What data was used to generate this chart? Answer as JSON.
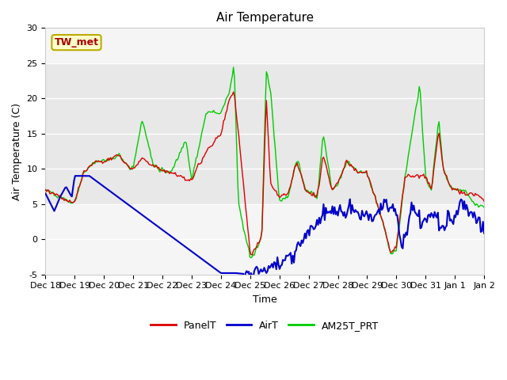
{
  "title": "Air Temperature",
  "xlabel": "Time",
  "ylabel": "Air Temperature (C)",
  "ylim": [
    -5,
    30
  ],
  "yticks": [
    -5,
    0,
    5,
    10,
    15,
    20,
    25,
    30
  ],
  "xtick_labels": [
    "Dec 18",
    "Dec 19",
    "Dec 20",
    "Dec 21",
    "Dec 22",
    "Dec 23",
    "Dec 24",
    "Dec 25",
    "Dec 26",
    "Dec 27",
    "Dec 28",
    "Dec 29",
    "Dec 30",
    "Dec 31",
    "Jan 1",
    "Jan 2"
  ],
  "annotation_text": "TW_met",
  "annotation_color": "#aa0000",
  "annotation_box_face": "#ffffcc",
  "annotation_box_edge": "#bbaa00",
  "shaded_band_low": 5,
  "shaded_band_high": 25,
  "legend_entries": [
    "PanelT",
    "AirT",
    "AM25T_PRT"
  ],
  "panel_color": "#dd0000",
  "air_color": "#0000cc",
  "am25t_color": "#00cc00",
  "plot_bg": "#f5f5f5",
  "fig_bg": "#ffffff",
  "band_color": "#e8e8e8",
  "grid_color": "#ffffff",
  "title_fontsize": 11,
  "axis_fontsize": 9,
  "tick_fontsize": 8,
  "legend_fontsize": 9
}
